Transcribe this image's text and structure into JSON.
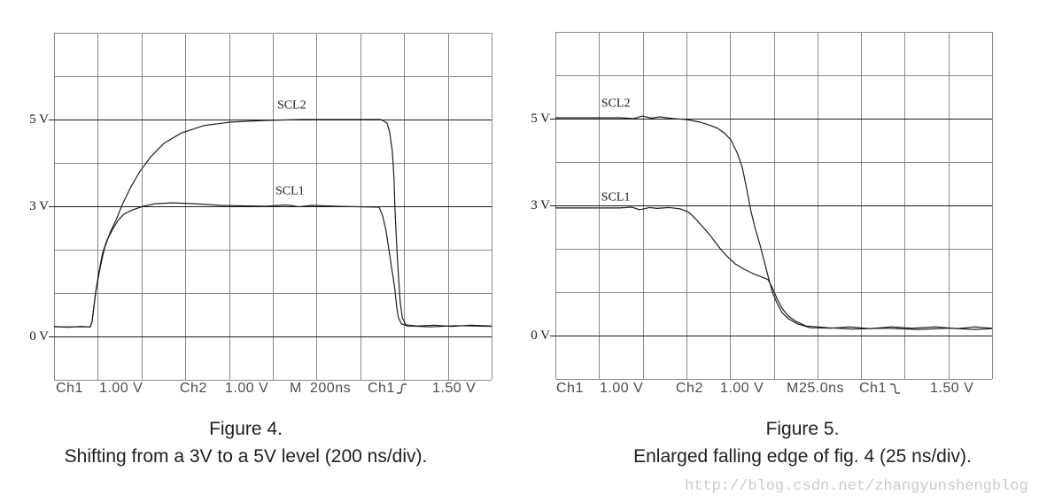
{
  "page": {
    "background": "#ffffff",
    "watermark": "http://blog.csdn.net/zhangyunshengblog"
  },
  "colors": {
    "grid": "#8a8a8a",
    "border": "#8a8a8a",
    "reference_line": "#1a1a1a",
    "trace": "#1f1f1f",
    "status_text": "#4d4d4d",
    "caption_text": "#1f1f1f",
    "watermark_text": "#c7cbce"
  },
  "chart_data": [
    {
      "id": "figure4",
      "type": "line",
      "title": "Figure 4.",
      "caption": "Shifting from a 3V to a 5V level (200 ns/div).",
      "x_divisions": 10,
      "y_divisions": 8,
      "v_min": -1,
      "v_max": 7,
      "x_unit": "div",
      "time_per_div": "200 ns",
      "volts_per_div": "1.00 V",
      "grid": true,
      "ref_levels": [
        5,
        3,
        0
      ],
      "y_labels": [
        {
          "v": 5,
          "text": "5 V"
        },
        {
          "v": 3,
          "text": "3 V"
        },
        {
          "v": 0,
          "text": "0 V"
        }
      ],
      "annotations": [
        {
          "text": "SCL2",
          "div": 5.08,
          "v": 5.3
        },
        {
          "text": "SCL1",
          "div": 5.04,
          "v": 3.32
        }
      ],
      "series": [
        {
          "name": "SCL2",
          "points": [
            [
              0,
              0.22
            ],
            [
              0.83,
              0.22
            ],
            [
              0.87,
              0.35
            ],
            [
              0.95,
              1.0
            ],
            [
              1.05,
              1.57
            ],
            [
              1.15,
              2.02
            ],
            [
              1.28,
              2.39
            ],
            [
              1.42,
              2.69
            ],
            [
              1.56,
              3.04
            ],
            [
              1.76,
              3.45
            ],
            [
              1.96,
              3.8
            ],
            [
              2.21,
              4.14
            ],
            [
              2.51,
              4.45
            ],
            [
              2.91,
              4.69
            ],
            [
              3.42,
              4.86
            ],
            [
              4.03,
              4.94
            ],
            [
              4.84,
              4.98
            ],
            [
              5.65,
              5.0
            ],
            [
              7.47,
              5.0
            ],
            [
              7.61,
              4.92
            ],
            [
              7.67,
              4.71
            ],
            [
              7.73,
              4.27
            ],
            [
              7.77,
              3.65
            ],
            [
              7.79,
              2.98
            ],
            [
              7.83,
              2.12
            ],
            [
              7.87,
              1.41
            ],
            [
              7.91,
              0.8
            ],
            [
              7.96,
              0.43
            ],
            [
              8.04,
              0.27
            ],
            [
              8.28,
              0.24
            ],
            [
              8.7,
              0.26
            ],
            [
              9.1,
              0.23
            ],
            [
              9.5,
              0.26
            ],
            [
              10,
              0.24
            ]
          ]
        },
        {
          "name": "SCL1",
          "points": [
            [
              0,
              0.23
            ],
            [
              0.3,
              0.21
            ],
            [
              0.6,
              0.23
            ],
            [
              0.83,
              0.22
            ],
            [
              0.87,
              0.35
            ],
            [
              0.95,
              1.0
            ],
            [
              1.03,
              1.51
            ],
            [
              1.11,
              1.92
            ],
            [
              1.21,
              2.22
            ],
            [
              1.34,
              2.47
            ],
            [
              1.46,
              2.67
            ],
            [
              1.6,
              2.82
            ],
            [
              1.8,
              2.92
            ],
            [
              2.04,
              3.0
            ],
            [
              2.31,
              3.06
            ],
            [
              2.71,
              3.08
            ],
            [
              3.22,
              3.06
            ],
            [
              3.83,
              3.02
            ],
            [
              4.84,
              3.0
            ],
            [
              5.3,
              3.03
            ],
            [
              5.6,
              2.99
            ],
            [
              5.9,
              3.02
            ],
            [
              6.46,
              3.0
            ],
            [
              7.43,
              2.98
            ],
            [
              7.51,
              2.78
            ],
            [
              7.59,
              2.43
            ],
            [
              7.65,
              2.02
            ],
            [
              7.71,
              1.61
            ],
            [
              7.75,
              1.37
            ],
            [
              7.79,
              1.08
            ],
            [
              7.83,
              0.69
            ],
            [
              7.87,
              0.43
            ],
            [
              7.94,
              0.29
            ],
            [
              8.08,
              0.24
            ],
            [
              8.6,
              0.22
            ],
            [
              9.2,
              0.25
            ],
            [
              10,
              0.23
            ]
          ]
        }
      ],
      "status": {
        "ch1_label": "Ch1",
        "ch1_scale": "1.00 V",
        "ch2_label": "Ch2",
        "ch2_scale": "1.00 V",
        "m_label": "M",
        "timebase": "200ns",
        "trig_channel": "Ch1",
        "trig_slope_icon": "rising-edge-icon",
        "trig_level": "1.50 V"
      }
    },
    {
      "id": "figure5",
      "type": "line",
      "title": "Figure 5.",
      "caption": "Enlarged falling edge of fig. 4 (25 ns/div).",
      "x_divisions": 10,
      "y_divisions": 8,
      "v_min": -1,
      "v_max": 7,
      "x_unit": "div",
      "time_per_div": "25.0 ns",
      "volts_per_div": "1.00 V",
      "grid": true,
      "ref_levels": [
        5,
        3,
        0
      ],
      "y_labels": [
        {
          "v": 5,
          "text": "5 V"
        },
        {
          "v": 3,
          "text": "3 V"
        },
        {
          "v": 0,
          "text": "0 V"
        }
      ],
      "annotations": [
        {
          "text": "SCL2",
          "div": 1.03,
          "v": 5.32
        },
        {
          "text": "SCL1",
          "div": 1.03,
          "v": 3.17
        }
      ],
      "series": [
        {
          "name": "SCL2",
          "points": [
            [
              0,
              5.02
            ],
            [
              1.48,
              5.02
            ],
            [
              1.8,
              5.0
            ],
            [
              1.99,
              5.06
            ],
            [
              2.2,
              5.01
            ],
            [
              2.39,
              5.04
            ],
            [
              2.7,
              5.0
            ],
            [
              3.0,
              4.98
            ],
            [
              3.31,
              4.92
            ],
            [
              3.51,
              4.86
            ],
            [
              3.71,
              4.78
            ],
            [
              3.87,
              4.67
            ],
            [
              4.02,
              4.51
            ],
            [
              4.16,
              4.22
            ],
            [
              4.28,
              3.88
            ],
            [
              4.38,
              3.39
            ],
            [
              4.48,
              2.86
            ],
            [
              4.58,
              2.45
            ],
            [
              4.69,
              2.08
            ],
            [
              4.79,
              1.69
            ],
            [
              4.87,
              1.37
            ],
            [
              4.97,
              1.0
            ],
            [
              5.07,
              0.76
            ],
            [
              5.19,
              0.53
            ],
            [
              5.33,
              0.39
            ],
            [
              5.54,
              0.27
            ],
            [
              5.84,
              0.18
            ],
            [
              6.3,
              0.17
            ],
            [
              6.75,
              0.2
            ],
            [
              7.2,
              0.16
            ],
            [
              7.7,
              0.2
            ],
            [
              8.17,
              0.17
            ],
            [
              8.7,
              0.2
            ],
            [
              9.2,
              0.16
            ],
            [
              9.6,
              0.2
            ],
            [
              10,
              0.17
            ]
          ]
        },
        {
          "name": "SCL1",
          "points": [
            [
              0,
              2.94
            ],
            [
              1.48,
              2.94
            ],
            [
              1.75,
              2.96
            ],
            [
              1.93,
              2.9
            ],
            [
              2.15,
              2.95
            ],
            [
              2.33,
              2.93
            ],
            [
              2.6,
              2.95
            ],
            [
              2.86,
              2.92
            ],
            [
              3.06,
              2.84
            ],
            [
              3.23,
              2.67
            ],
            [
              3.39,
              2.49
            ],
            [
              3.53,
              2.33
            ],
            [
              3.67,
              2.14
            ],
            [
              3.81,
              1.96
            ],
            [
              3.96,
              1.8
            ],
            [
              4.12,
              1.65
            ],
            [
              4.32,
              1.53
            ],
            [
              4.52,
              1.43
            ],
            [
              4.73,
              1.35
            ],
            [
              4.87,
              1.29
            ],
            [
              4.97,
              1.1
            ],
            [
              5.07,
              0.86
            ],
            [
              5.19,
              0.63
            ],
            [
              5.33,
              0.45
            ],
            [
              5.5,
              0.33
            ],
            [
              5.74,
              0.22
            ],
            [
              6.25,
              0.18
            ],
            [
              6.8,
              0.15
            ],
            [
              7.57,
              0.17
            ],
            [
              8.3,
              0.14
            ],
            [
              9.0,
              0.17
            ],
            [
              9.6,
              0.14
            ],
            [
              10,
              0.16
            ]
          ]
        }
      ],
      "status": {
        "ch1_label": "Ch1",
        "ch1_scale": "1.00 V",
        "ch2_label": "Ch2",
        "ch2_scale": "1.00 V",
        "m_label": "M",
        "timebase": "25.0ns",
        "trig_channel": "Ch1",
        "trig_slope_icon": "falling-edge-icon",
        "trig_level": "1.50 V"
      }
    }
  ]
}
